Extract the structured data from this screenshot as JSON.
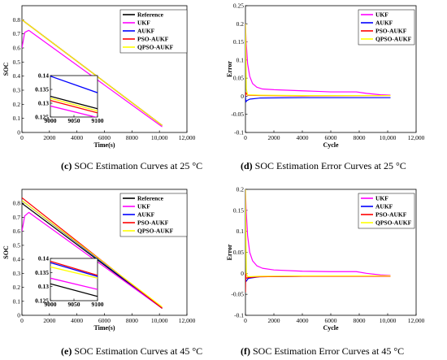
{
  "colors": {
    "Reference": "#000000",
    "UKF": "#ff00ff",
    "AUKF": "#0000ff",
    "PSO-AUKF": "#ff0000",
    "QPSO-AUKF": "#ffff00"
  },
  "chart_data": [
    {
      "id": "c",
      "type": "line",
      "caption_label": "(c)",
      "caption_text": " SOC Estimation Curves at 25 °C",
      "xlabel": "Time(s)",
      "ylabel": "SOC",
      "xlim": [
        0,
        12000
      ],
      "ylim": [
        0,
        0.9
      ],
      "xticks": [
        0,
        2000,
        4000,
        6000,
        8000,
        10000,
        12000
      ],
      "xticklabels": [
        "0",
        "2000",
        "4000",
        "6000",
        "8000",
        "10,000",
        "12,000"
      ],
      "yticks": [
        0,
        0.1,
        0.2,
        0.3,
        0.4,
        0.5,
        0.6,
        0.7,
        0.8
      ],
      "yticklabels": [
        "0",
        "0.1",
        "0.2",
        "0.3",
        "0.4",
        "0.5",
        "0.6",
        "0.7",
        "0.8"
      ],
      "legend": [
        "Reference",
        "UKF",
        "AUKF",
        "PSO-AUKF",
        "QPSO-AUKF"
      ],
      "legend_position": "top-right",
      "series": [
        {
          "name": "Reference",
          "x": [
            0,
            10200
          ],
          "y": [
            0.8,
            0.05
          ]
        },
        {
          "name": "UKF",
          "x": [
            0,
            200,
            500,
            10200
          ],
          "y": [
            0.6,
            0.71,
            0.725,
            0.04
          ]
        },
        {
          "name": "AUKF",
          "x": [
            0,
            10200
          ],
          "y": [
            0.8,
            0.05
          ]
        },
        {
          "name": "PSO-AUKF",
          "x": [
            0,
            10200
          ],
          "y": [
            0.8,
            0.05
          ]
        },
        {
          "name": "QPSO-AUKF",
          "x": [
            0,
            10200
          ],
          "y": [
            0.8,
            0.05
          ]
        }
      ],
      "inset": {
        "xlim": [
          9000,
          9100
        ],
        "ylim": [
          0.125,
          0.14
        ],
        "xticks": [
          9000,
          9050,
          9100
        ],
        "xticklabels": [
          "9000",
          "9050",
          "9100"
        ],
        "yticks": [
          0.125,
          0.13,
          0.135,
          0.14
        ],
        "yticklabels": [
          "0.125",
          "0.13",
          "0.135",
          "0.14"
        ],
        "series": [
          {
            "name": "AUKF",
            "x": [
              9000,
              9100
            ],
            "y": [
              0.1398,
              0.1338
            ]
          },
          {
            "name": "Reference",
            "x": [
              9000,
              9100
            ],
            "y": [
              0.1325,
              0.128
            ]
          },
          {
            "name": "QPSO-AUKF",
            "x": [
              9000,
              9100
            ],
            "y": [
              0.1318,
              0.1272
            ]
          },
          {
            "name": "PSO-AUKF",
            "x": [
              9000,
              9100
            ],
            "y": [
              0.131,
              0.1265
            ]
          },
          {
            "name": "UKF",
            "x": [
              9000,
              9100
            ],
            "y": [
              0.129,
              0.1248
            ]
          }
        ]
      }
    },
    {
      "id": "d",
      "type": "line",
      "caption_label": "(d)",
      "caption_text": " SOC Estimation Error Curves at 25 °C",
      "xlabel": "Cycle",
      "ylabel": "Error",
      "xlim": [
        0,
        12000
      ],
      "ylim": [
        -0.1,
        0.25
      ],
      "xticks": [
        0,
        2000,
        4000,
        6000,
        8000,
        10000,
        12000
      ],
      "xticklabels": [
        "0",
        "2000",
        "4000",
        "6000",
        "8000",
        "10,000",
        "12,000"
      ],
      "yticks": [
        -0.1,
        -0.05,
        0,
        0.05,
        0.1,
        0.15,
        0.2,
        0.25
      ],
      "yticklabels": [
        "-0.1",
        "-0.05",
        "0",
        "0.05",
        "0.1",
        "0.15",
        "0.2",
        "0.25"
      ],
      "legend": [
        "UKF",
        "AUKF",
        "PSO-AUKF",
        "QPSO-AUKF"
      ],
      "legend_position": "top-right",
      "series": [
        {
          "name": "UKF",
          "x": [
            0,
            50,
            150,
            300,
            500,
            800,
            1200,
            2000,
            4000,
            6000,
            7800,
            8500,
            9500,
            10200
          ],
          "y": [
            0.2,
            0.15,
            0.09,
            0.055,
            0.035,
            0.025,
            0.02,
            0.018,
            0.015,
            0.012,
            0.012,
            0.008,
            0.004,
            0.003
          ]
        },
        {
          "name": "AUKF",
          "x": [
            0,
            30,
            100,
            300,
            1000,
            4000,
            10200
          ],
          "y": [
            0.0,
            -0.016,
            -0.012,
            -0.008,
            -0.005,
            -0.004,
            -0.004
          ]
        },
        {
          "name": "PSO-AUKF",
          "x": [
            0,
            30,
            150,
            1000,
            4000,
            10200
          ],
          "y": [
            0.0,
            0.01,
            0.003,
            0.002,
            0.001,
            0.002
          ]
        },
        {
          "name": "QPSO-AUKF",
          "x": [
            0,
            30,
            60,
            150,
            1000,
            4000,
            10200
          ],
          "y": [
            0.2,
            0.15,
            0.02,
            0.004,
            0.003,
            0.002,
            0.002
          ]
        }
      ]
    },
    {
      "id": "e",
      "type": "line",
      "caption_label": "(e)",
      "caption_text": " SOC Estimation Curves at 45 °C",
      "xlabel": "Time(s)",
      "ylabel": "SOC",
      "xlim": [
        0,
        12000
      ],
      "ylim": [
        0,
        0.9
      ],
      "xticks": [
        0,
        2000,
        4000,
        6000,
        8000,
        10000,
        12000
      ],
      "xticklabels": [
        "0",
        "2000",
        "4000",
        "6000",
        "8000",
        "10,000",
        "12,000"
      ],
      "yticks": [
        0,
        0.1,
        0.2,
        0.3,
        0.4,
        0.5,
        0.6,
        0.7,
        0.8
      ],
      "yticklabels": [
        "0",
        "0.1",
        "0.2",
        "0.3",
        "0.4",
        "0.5",
        "0.6",
        "0.7",
        "0.8"
      ],
      "legend": [
        "Reference",
        "UKF",
        "AUKF",
        "PSO-AUKF",
        "QPSO-AUKF"
      ],
      "legend_position": "top-right",
      "series": [
        {
          "name": "Reference",
          "x": [
            0,
            10200
          ],
          "y": [
            0.8,
            0.05
          ]
        },
        {
          "name": "UKF",
          "x": [
            0,
            200,
            500,
            10200
          ],
          "y": [
            0.6,
            0.71,
            0.735,
            0.05
          ]
        },
        {
          "name": "AUKF",
          "x": [
            0,
            10200
          ],
          "y": [
            0.82,
            0.05
          ]
        },
        {
          "name": "PSO-AUKF",
          "x": [
            0,
            10200
          ],
          "y": [
            0.84,
            0.05
          ]
        },
        {
          "name": "QPSO-AUKF",
          "x": [
            0,
            10200
          ],
          "y": [
            0.82,
            0.06
          ]
        }
      ],
      "inset": {
        "xlim": [
          9000,
          9100
        ],
        "ylim": [
          0.125,
          0.14
        ],
        "xticks": [
          9000,
          9050,
          9100
        ],
        "xticklabels": [
          "9000",
          "9050",
          "9100"
        ],
        "yticks": [
          0.125,
          0.13,
          0.135,
          0.14
        ],
        "yticklabels": [
          "0.125",
          "0.13",
          "0.135",
          "0.14"
        ],
        "series": [
          {
            "name": "QPSO-AUKF",
            "x": [
              9000,
              9100
            ],
            "y": [
              0.137,
              0.133
            ]
          },
          {
            "name": "PSO-AUKF",
            "x": [
              9000,
              9100
            ],
            "y": [
              0.139,
              0.134
            ]
          },
          {
            "name": "AUKF",
            "x": [
              9000,
              9100
            ],
            "y": [
              0.1385,
              0.1336
            ]
          },
          {
            "name": "UKF",
            "x": [
              9000,
              9100
            ],
            "y": [
              0.133,
              0.129
            ]
          },
          {
            "name": "Reference",
            "x": [
              9000,
              9100
            ],
            "y": [
              0.131,
              0.1265
            ]
          }
        ]
      }
    },
    {
      "id": "f",
      "type": "line",
      "caption_label": "(f)",
      "caption_text": " SOC Estimation Error Curves at 45 °C",
      "xlabel": "Cycle",
      "ylabel": "Error",
      "xlim": [
        0,
        12000
      ],
      "ylim": [
        -0.1,
        0.2
      ],
      "xticks": [
        0,
        2000,
        4000,
        6000,
        8000,
        10000,
        12000
      ],
      "xticklabels": [
        "0",
        "2000",
        "4000",
        "6000",
        "8000",
        "10,000",
        "12,000"
      ],
      "yticks": [
        -0.1,
        -0.05,
        0,
        0.05,
        0.1,
        0.15,
        0.2
      ],
      "yticklabels": [
        "-0.1",
        "-0.05",
        "0",
        "0.05",
        "0.1",
        "0.15",
        "0.2"
      ],
      "legend": [
        "UKF",
        "AUKF",
        "PSO-AUKF",
        "QPSO-AUKF"
      ],
      "legend_position": "top-right",
      "series": [
        {
          "name": "UKF",
          "x": [
            0,
            50,
            150,
            300,
            500,
            800,
            1200,
            2000,
            4000,
            6000,
            7800,
            8500,
            9500,
            10200
          ],
          "y": [
            0.2,
            0.15,
            0.09,
            0.05,
            0.03,
            0.018,
            0.012,
            0.008,
            0.005,
            0.004,
            0.004,
            0.0,
            -0.004,
            -0.005
          ]
        },
        {
          "name": "AUKF",
          "x": [
            0,
            30,
            200,
            1000,
            4000,
            10200
          ],
          "y": [
            0.0,
            -0.02,
            -0.012,
            -0.008,
            -0.007,
            -0.007
          ]
        },
        {
          "name": "PSO-AUKF",
          "x": [
            0,
            20,
            40,
            200,
            1000,
            4000,
            10200
          ],
          "y": [
            -0.045,
            0.0,
            -0.012,
            -0.01,
            -0.008,
            -0.007,
            -0.007
          ]
        },
        {
          "name": "QPSO-AUKF",
          "x": [
            0,
            30,
            60,
            150,
            1000,
            4000,
            10200
          ],
          "y": [
            0.2,
            0.12,
            0.0,
            -0.008,
            -0.007,
            -0.006,
            -0.006
          ]
        }
      ]
    }
  ]
}
